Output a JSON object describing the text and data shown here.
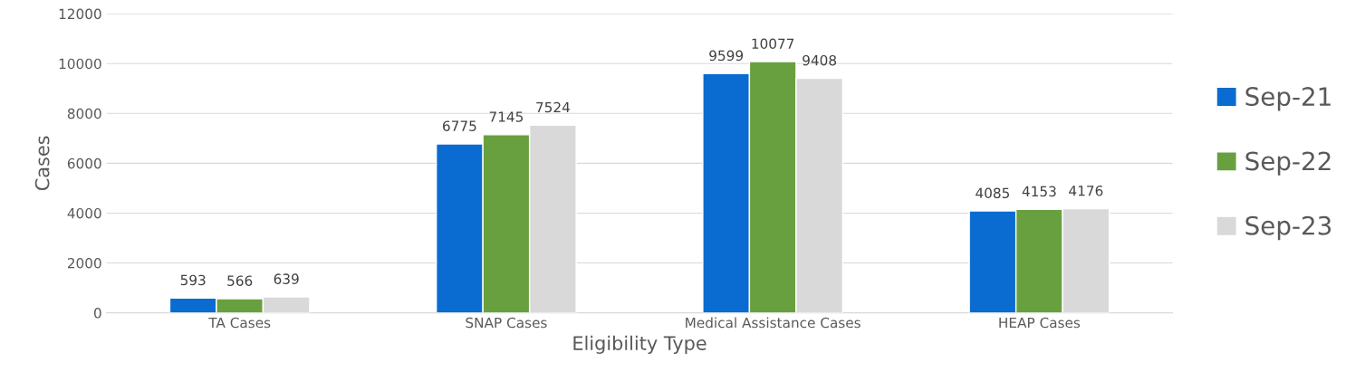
{
  "chart_data": {
    "type": "bar",
    "xlabel": "Eligibility Type",
    "ylabel": "Cases",
    "categories": [
      "TA Cases",
      "SNAP Cases",
      "Medical Assistance Cases",
      "HEAP Cases"
    ],
    "series": [
      {
        "name": "Sep-21",
        "color": "#0a6bd1",
        "values": [
          593,
          6775,
          9599,
          4085
        ]
      },
      {
        "name": "Sep-22",
        "color": "#68a040",
        "values": [
          566,
          7145,
          10077,
          4153
        ]
      },
      {
        "name": "Sep-23",
        "color": "#d9d9d9",
        "values": [
          639,
          7524,
          9408,
          4176
        ]
      }
    ],
    "ylim": [
      0,
      12000
    ],
    "yticks": [
      0,
      2000,
      4000,
      6000,
      8000,
      10000,
      12000
    ],
    "grid": "y",
    "legend": "right",
    "data_labels": true
  }
}
